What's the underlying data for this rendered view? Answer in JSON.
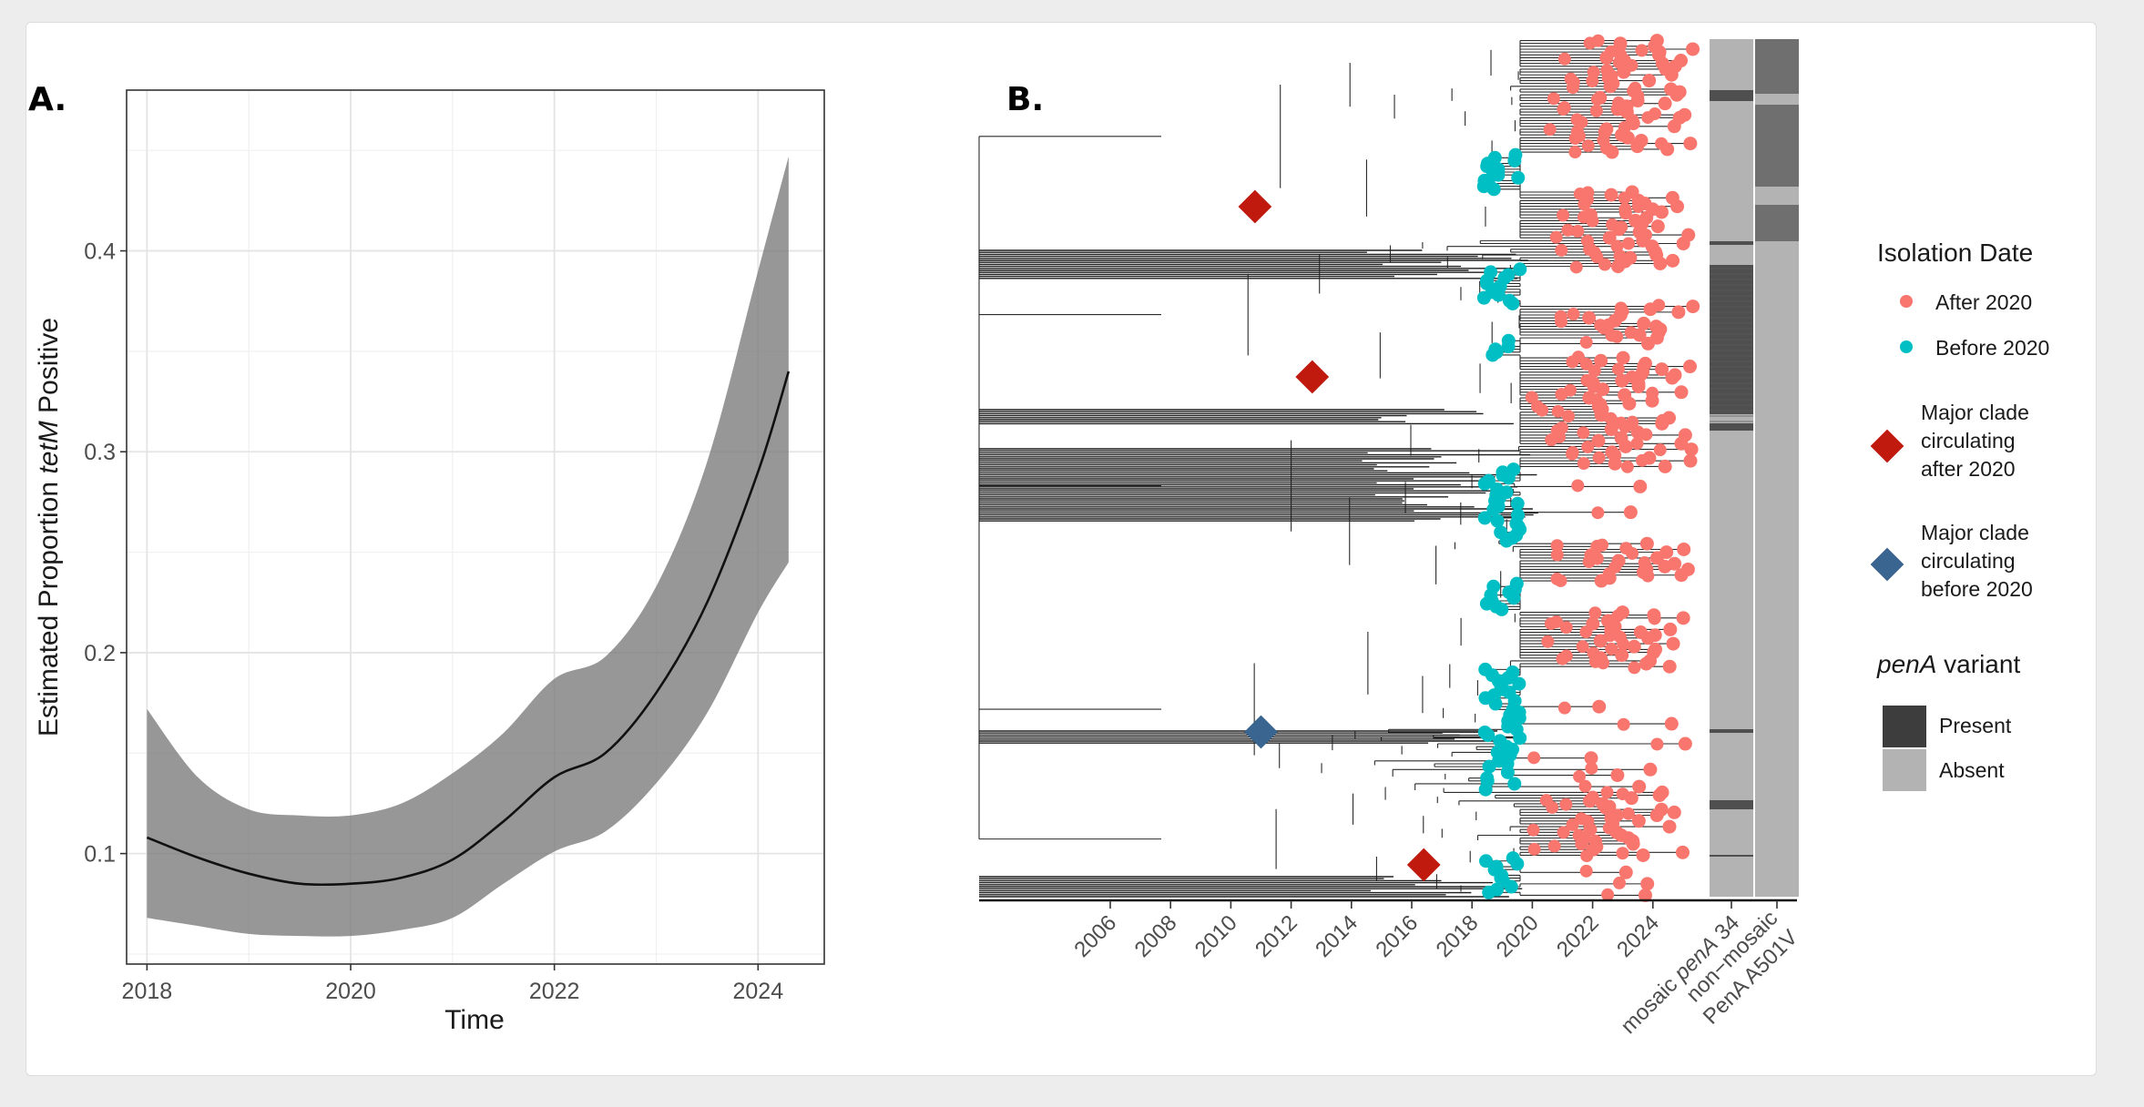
{
  "chart_data": [
    {
      "panel": "A.",
      "type": "line",
      "title": "",
      "xlabel": "Time",
      "ylabel_parts": [
        "Estimated Proportion ",
        "tetM",
        " Positive"
      ],
      "xlim": [
        2017.8,
        2024.65
      ],
      "ylim": [
        0.045,
        0.48
      ],
      "x_ticks": [
        2018,
        2020,
        2022,
        2024
      ],
      "x_tick_labels": [
        "2018",
        "2020",
        "2022",
        "2024"
      ],
      "y_ticks": [
        0.1,
        0.2,
        0.3,
        0.4
      ],
      "y_tick_labels": [
        "0.1",
        "0.2",
        "0.3",
        "0.4"
      ],
      "grid": true,
      "series": [
        {
          "name": "estimate",
          "x": [
            2018.0,
            2018.5,
            2019.0,
            2019.5,
            2020.0,
            2020.5,
            2021.0,
            2021.5,
            2022.0,
            2022.5,
            2023.0,
            2023.5,
            2024.0,
            2024.3
          ],
          "y": [
            0.108,
            0.098,
            0.09,
            0.085,
            0.085,
            0.088,
            0.097,
            0.116,
            0.138,
            0.15,
            0.18,
            0.225,
            0.29,
            0.34
          ],
          "lower": [
            0.068,
            0.064,
            0.06,
            0.059,
            0.059,
            0.062,
            0.068,
            0.085,
            0.101,
            0.111,
            0.135,
            0.17,
            0.22,
            0.245
          ],
          "upper": [
            0.172,
            0.138,
            0.122,
            0.119,
            0.119,
            0.125,
            0.14,
            0.16,
            0.187,
            0.198,
            0.233,
            0.295,
            0.39,
            0.447
          ]
        }
      ]
    },
    {
      "panel": "B.",
      "type": "tree-heatmap",
      "title": "",
      "x_ticks": [
        2006,
        2008,
        2010,
        2012,
        2014,
        2016,
        2018,
        2020,
        2022,
        2024
      ],
      "x_tick_labels": [
        "2006",
        "2008",
        "2010",
        "2012",
        "2014",
        "2016",
        "2018",
        "2020",
        "2022",
        "2024"
      ],
      "heatmap_columns": [
        {
          "parts": [
            "mosaic ",
            "penA",
            " 34"
          ]
        },
        {
          "parts": [
            "non−mosaic"
          ],
          "line2": "PenA A501V"
        }
      ],
      "major_clades": [
        {
          "year": 2010.8,
          "group": "after"
        },
        {
          "year": 2012.7,
          "group": "after"
        },
        {
          "year": 2011.0,
          "group": "before"
        },
        {
          "year": 2016.4,
          "group": "after"
        }
      ],
      "legend": {
        "isolation_title": "Isolation Date",
        "after_label": "After 2020",
        "before_label": "Before 2020",
        "clade_after_lines": [
          "Major clade",
          "circulating",
          "after 2020"
        ],
        "clade_before_lines": [
          "Major clade",
          "circulating",
          "before 2020"
        ],
        "pena_title_italic": "penA",
        "pena_title_rest": " variant",
        "present_label": "Present",
        "absent_label": "Absent"
      },
      "colors": {
        "after": "#f8766d",
        "before": "#00bfc4",
        "clade_after": "#c0190e",
        "clade_before": "#3a6591",
        "present": "#3d3d3d",
        "absent": "#b3b3b3"
      }
    }
  ]
}
